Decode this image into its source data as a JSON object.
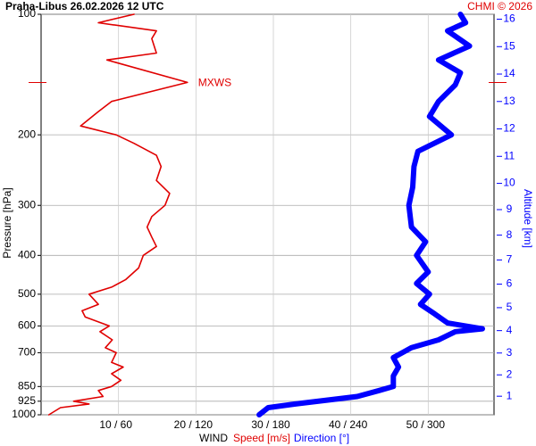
{
  "chart_data": {
    "type": "profile",
    "title": "Praha-Libus    26.02.2026 12 UTC",
    "credit": "CHMI © 2026",
    "y_label": "Pressure [hPa]",
    "y2_label": "Altitude [km]",
    "x_label": "WIND",
    "y_log": true,
    "ylim": [
      100,
      1000
    ],
    "yticks": [
      100,
      200,
      300,
      400,
      500,
      600,
      700,
      850,
      925,
      1000
    ],
    "y2ticks": [
      1,
      2,
      3,
      4,
      5,
      6,
      7,
      8,
      9,
      10,
      11,
      12,
      13,
      14,
      15,
      16
    ],
    "xlim": [
      0,
      58.5
    ],
    "x2lim": [
      0,
      351
    ],
    "xticks": [
      {
        "value": 10,
        "label": "10 / 60"
      },
      {
        "value": 20,
        "label": "20 / 120"
      },
      {
        "value": 30,
        "label": "30 / 180"
      },
      {
        "value": 40,
        "label": "40 / 240"
      },
      {
        "value": 50,
        "label": "50 / 300"
      }
    ],
    "grid": true,
    "annotations": [
      {
        "text": "MXWS",
        "pressure": 148,
        "speed": 18.9
      }
    ],
    "series": [
      {
        "name": "Speed [m/s]",
        "color": "#e00000",
        "axis": "x",
        "pressure": [
          1000,
          960,
          940,
          925,
          900,
          870,
          850,
          820,
          790,
          760,
          740,
          700,
          680,
          650,
          620,
          600,
          570,
          550,
          530,
          500,
          480,
          460,
          430,
          400,
          380,
          360,
          340,
          320,
          300,
          280,
          260,
          240,
          225,
          210,
          200,
          190,
          175,
          165,
          148,
          130,
          125,
          115,
          110,
          105,
          100
        ],
        "values": [
          1.0,
          2.5,
          6.2,
          4.2,
          8.0,
          7.4,
          9.1,
          10.3,
          9.1,
          10.6,
          9.1,
          9.7,
          8.3,
          9.2,
          7.6,
          8.8,
          5.7,
          5.3,
          7.4,
          6.2,
          9.1,
          10.9,
          12.6,
          13.2,
          14.9,
          14.3,
          13.7,
          14.3,
          16.0,
          16.6,
          14.9,
          15.5,
          14.9,
          12.0,
          9.7,
          5.1,
          7.4,
          9.1,
          18.9,
          8.5,
          14.9,
          14.3,
          14.9,
          7.4,
          12.0
        ]
      },
      {
        "name": "Direction [°]",
        "color": "#0000ff",
        "axis": "x2",
        "pressure": [
          1000,
          960,
          940,
          900,
          870,
          850,
          800,
          760,
          720,
          700,
          680,
          650,
          620,
          610,
          590,
          560,
          530,
          500,
          470,
          440,
          400,
          370,
          340,
          300,
          270,
          240,
          220,
          200,
          180,
          165,
          150,
          140,
          130,
          120,
          110,
          105,
          100
        ],
        "values": [
          169,
          176,
          197,
          245,
          262,
          273,
          273,
          277,
          273,
          280,
          287,
          308,
          321,
          342,
          315,
          305,
          294,
          301,
          291,
          300,
          291,
          298,
          287,
          285,
          288,
          289,
          292,
          318,
          301,
          308,
          321,
          325,
          308,
          332,
          315,
          329,
          325
        ]
      }
    ]
  }
}
